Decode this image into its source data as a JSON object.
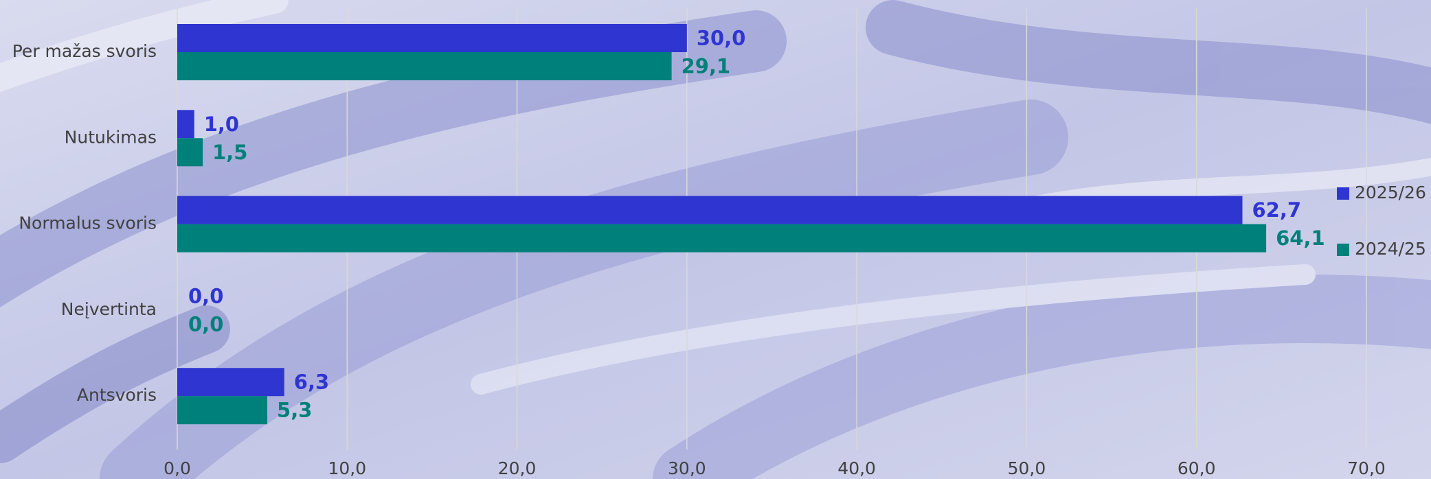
{
  "chart_data": {
    "type": "hbar",
    "categories": [
      "Per mažas svoris",
      "Nutukimas",
      "Normalus svoris",
      "Neįvertinta",
      "Antsvoris"
    ],
    "series": [
      {
        "name": "2025/26",
        "color": "#2e35d1",
        "values": [
          30.0,
          1.0,
          62.7,
          0.0,
          6.3
        ],
        "value_labels": [
          "30,0",
          "1,0",
          "62,7",
          "0,0",
          "6,3"
        ]
      },
      {
        "name": "2024/25",
        "color": "#00807a",
        "values": [
          29.1,
          1.5,
          64.1,
          0.0,
          5.3
        ],
        "value_labels": [
          "29,1",
          "1,5",
          "64,1",
          "0,0",
          "5,3"
        ]
      }
    ],
    "xlim": [
      0,
      70
    ],
    "xticks": [
      {
        "value": 0,
        "label": "0,0"
      },
      {
        "value": 10,
        "label": "10,0"
      },
      {
        "value": 20,
        "label": "20,0"
      },
      {
        "value": 30,
        "label": "30,0"
      },
      {
        "value": 40,
        "label": "40,0"
      },
      {
        "value": 50,
        "label": "50,0"
      },
      {
        "value": 60,
        "label": "60,0"
      },
      {
        "value": 70,
        "label": "70,0"
      }
    ],
    "grid": true,
    "legend": "right"
  }
}
